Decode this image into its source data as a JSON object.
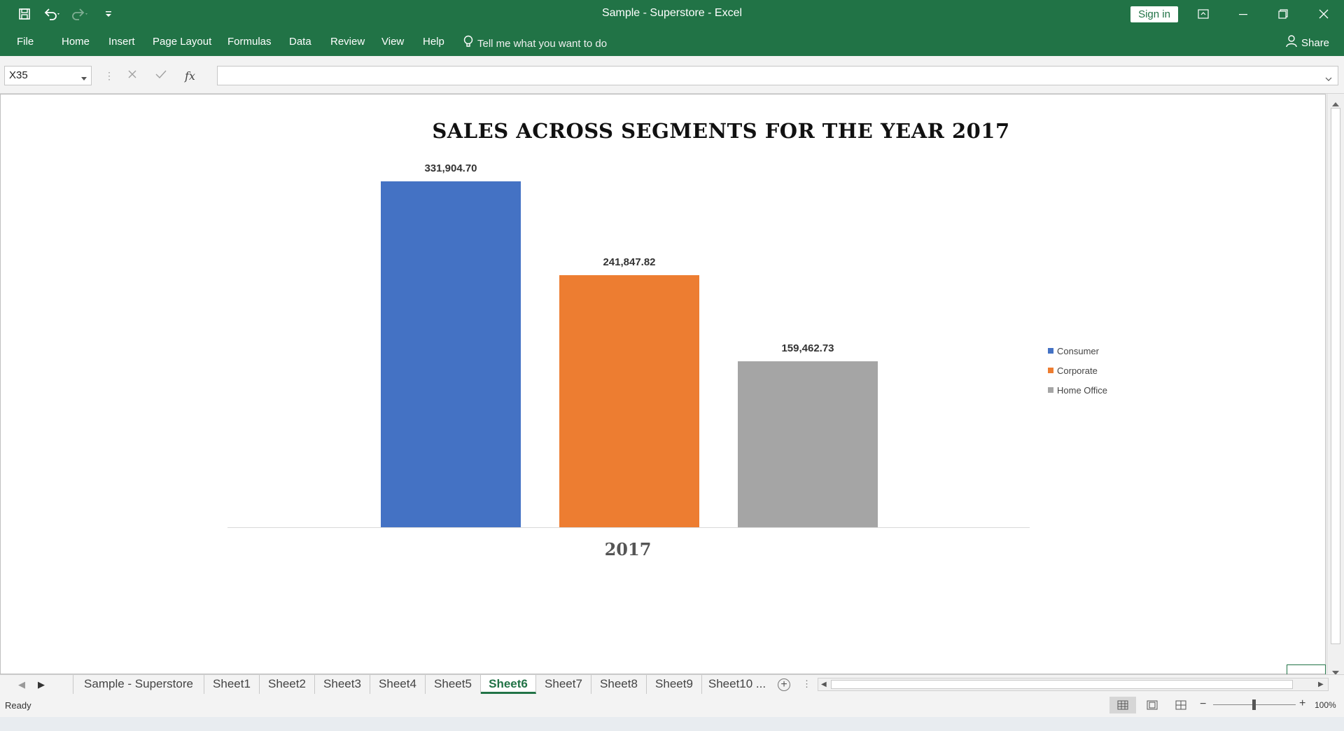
{
  "window": {
    "title": "Sample - Superstore  -  Excel",
    "sign_in": "Sign in"
  },
  "ribbon": {
    "tabs": [
      "File",
      "Home",
      "Insert",
      "Page Layout",
      "Formulas",
      "Data",
      "Review",
      "View",
      "Help"
    ],
    "tell_me": "Tell me what you want to do",
    "share": "Share"
  },
  "formula_bar": {
    "name_box": "X35",
    "fx_label": "fx",
    "content": ""
  },
  "chart_data": {
    "type": "bar",
    "title": "SALES ACROSS SEGMENTS FOR THE YEAR 2017",
    "categories": [
      "2017"
    ],
    "series": [
      {
        "name": "Consumer",
        "values": [
          331904.7
        ],
        "label": "331,904.70",
        "color": "#4472C4"
      },
      {
        "name": "Corporate",
        "values": [
          241847.82
        ],
        "label": "241,847.82",
        "color": "#ED7D31"
      },
      {
        "name": "Home Office",
        "values": [
          159462.73
        ],
        "label": "159,462.73",
        "color": "#A5A5A5"
      }
    ],
    "ylim": [
      0,
      350000
    ],
    "grid": false,
    "legend": "right"
  },
  "sheet_tabs": {
    "tabs": [
      "Sample - Superstore",
      "Sheet1",
      "Sheet2",
      "Sheet3",
      "Sheet4",
      "Sheet5",
      "Sheet6",
      "Sheet7",
      "Sheet8",
      "Sheet9",
      "Sheet10 ..."
    ],
    "active": "Sheet6"
  },
  "status": {
    "ready": "Ready",
    "zoom": "100%"
  }
}
